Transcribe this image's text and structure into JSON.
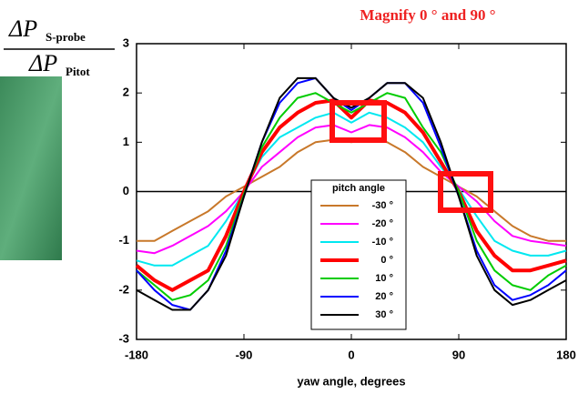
{
  "chart_data": {
    "type": "line",
    "title": "Magnify 0 ° and 90 °",
    "ylabel": {
      "numerator": "ΔP",
      "numerator_sub": "S-probe",
      "denominator": "ΔP",
      "denominator_sub": "Pitot"
    },
    "xlabel": "yaw angle, degrees",
    "legend_title": "pitch angle",
    "legend_position": "bottom-center",
    "reference_line": 0,
    "x": [
      -180,
      -165,
      -150,
      -135,
      -120,
      -105,
      -90,
      -75,
      -60,
      -45,
      -30,
      -15,
      0,
      15,
      30,
      45,
      60,
      75,
      90,
      105,
      120,
      135,
      150,
      165,
      180
    ],
    "series": [
      {
        "name": "-30 °",
        "color": "#c8782a",
        "width": 2,
        "values": [
          -1.0,
          -1.0,
          -0.8,
          -0.6,
          -0.4,
          -0.1,
          0.1,
          0.3,
          0.5,
          0.8,
          1.0,
          1.05,
          1.0,
          1.05,
          1.0,
          0.8,
          0.5,
          0.3,
          0.1,
          -0.1,
          -0.4,
          -0.7,
          -0.9,
          -1.0,
          -1.0
        ]
      },
      {
        "name": "-20 °",
        "color": "#ff00ff",
        "width": 2,
        "values": [
          -1.2,
          -1.25,
          -1.1,
          -0.9,
          -0.7,
          -0.4,
          0,
          0.5,
          0.8,
          1.1,
          1.3,
          1.35,
          1.2,
          1.35,
          1.3,
          1.1,
          0.8,
          0.4,
          0.1,
          -0.2,
          -0.6,
          -0.9,
          -1.0,
          -1.05,
          -1.1
        ]
      },
      {
        "name": "-10 °",
        "color": "#00e8f0",
        "width": 2,
        "values": [
          -1.4,
          -1.5,
          -1.5,
          -1.3,
          -1.1,
          -0.6,
          0,
          0.7,
          1.1,
          1.3,
          1.5,
          1.6,
          1.4,
          1.6,
          1.5,
          1.3,
          1.0,
          0.5,
          0.05,
          -0.5,
          -1.0,
          -1.2,
          -1.3,
          -1.3,
          -1.2
        ]
      },
      {
        "name": "0 °",
        "color": "#ff0000",
        "width": 4,
        "values": [
          -1.5,
          -1.8,
          -2.0,
          -1.8,
          -1.6,
          -0.9,
          0,
          0.8,
          1.3,
          1.6,
          1.8,
          1.85,
          1.5,
          1.85,
          1.8,
          1.6,
          1.2,
          0.6,
          0,
          -0.8,
          -1.3,
          -1.6,
          -1.6,
          -1.5,
          -1.4
        ]
      },
      {
        "name": "10 °",
        "color": "#00cc00",
        "width": 2,
        "values": [
          -1.6,
          -1.9,
          -2.2,
          -2.1,
          -1.8,
          -1.1,
          -0.05,
          0.9,
          1.5,
          1.9,
          2.0,
          1.8,
          1.6,
          1.8,
          2.0,
          1.9,
          1.3,
          0.8,
          0,
          -1.0,
          -1.6,
          -1.9,
          -2.0,
          -1.7,
          -1.5
        ]
      },
      {
        "name": "20 °",
        "color": "#0000ff",
        "width": 2,
        "values": [
          -1.6,
          -2.0,
          -2.3,
          -2.4,
          -2.0,
          -1.2,
          -0.1,
          1.0,
          1.8,
          2.2,
          2.3,
          1.9,
          1.65,
          1.9,
          2.2,
          2.2,
          1.8,
          0.9,
          -0.1,
          -1.2,
          -1.9,
          -2.2,
          -2.1,
          -1.9,
          -1.6
        ]
      },
      {
        "name": "30 °",
        "color": "#000000",
        "width": 2,
        "values": [
          -2.0,
          -2.2,
          -2.4,
          -2.4,
          -2.0,
          -1.3,
          -0.1,
          1.0,
          1.9,
          2.3,
          2.3,
          1.9,
          1.7,
          1.9,
          2.2,
          2.2,
          1.9,
          1.0,
          -0.1,
          -1.3,
          -2.0,
          -2.3,
          -2.2,
          -2.0,
          -1.8
        ]
      }
    ],
    "xlim": [
      -180,
      180
    ],
    "xticks": [
      -180,
      -90,
      0,
      90,
      180
    ],
    "ylim": [
      -3,
      3
    ],
    "yticks": [
      -3,
      -2,
      -1,
      0,
      1,
      2,
      3
    ]
  }
}
